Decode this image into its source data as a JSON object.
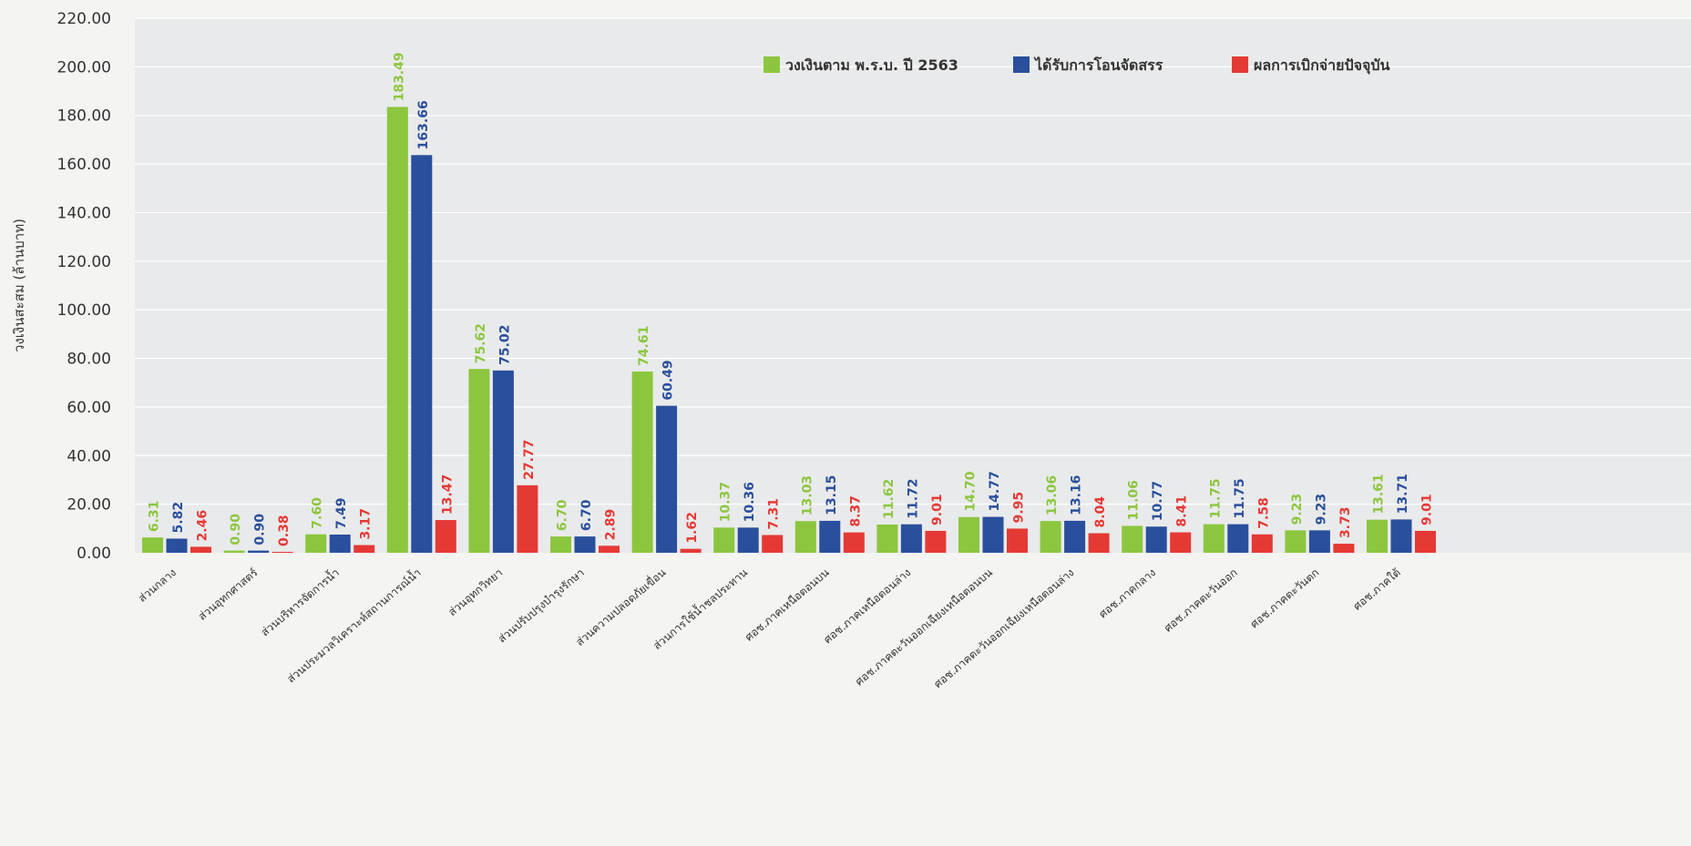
{
  "colors": {
    "series_1": "#8cc63f",
    "series_2": "#2a4f9c",
    "series_3": "#e53935",
    "plot_background": "#e9eaeb",
    "gridline": "#ffffff",
    "text": "#333333"
  },
  "chart_data": {
    "type": "bar",
    "title": "",
    "xlabel": "",
    "ylabel": "วงเงินสะสม (ล้านบาท)",
    "ylim": [
      0,
      220
    ],
    "y_ticks": [
      "0.00",
      "20.00",
      "40.00",
      "60.00",
      "80.00",
      "100.00",
      "120.00",
      "140.00",
      "160.00",
      "180.00",
      "200.00",
      "220.00"
    ],
    "grid": true,
    "legend_position": "top-right",
    "categories": [
      "ส่วนกลาง",
      "ส่วนอุทกศาสตร์",
      "ส่วนบริหารจัดการน้ำ",
      "ส่วนประมวลวิเคราะห์สถานการณ์น้ำ",
      "ส่วนอุทกวิทยา",
      "ส่วนปรับปรุงบำรุงรักษา",
      "ส่วนความปลอดภัยเขื่อน",
      "ส่วนการใช้น้ำชลประทาน",
      "ศอช.ภาคเหนือตอนบน",
      "ศอช.ภาคเหนือตอนล่าง",
      "ศอช.ภาคตะวันออกเฉียงเหนือตอนบน",
      "ศอช.ภาคตะวันออกเฉียงเหนือตอนล่าง",
      "ศอช.ภาคกลาง",
      "ศอช.ภาคตะวันออก",
      "ศอช.ภาคตะวันตก",
      "ศอช.ภาคใต้"
    ],
    "series": [
      {
        "name": "วงเงินตาม พ.ร.บ. ปี 2563",
        "values": [
          6.31,
          0.9,
          7.6,
          183.49,
          75.62,
          6.7,
          74.61,
          10.37,
          13.03,
          11.62,
          14.7,
          13.06,
          11.06,
          11.75,
          9.23,
          13.61
        ],
        "labels": [
          "6.31",
          "0.90",
          "7.60",
          "183.49",
          "75.62",
          "6.70",
          "74.61",
          "10.37",
          "13.03",
          "11.62",
          "14.70",
          "13.06",
          "11.06",
          "11.75",
          "9.23",
          "13.61"
        ]
      },
      {
        "name": "ได้รับการโอนจัดสรร",
        "values": [
          5.82,
          0.9,
          7.49,
          163.66,
          75.02,
          6.7,
          60.49,
          10.36,
          13.15,
          11.72,
          14.77,
          13.16,
          10.77,
          11.75,
          9.23,
          13.71
        ],
        "labels": [
          "5.82",
          "0.90",
          "7.49",
          "163.66",
          "75.02",
          "6.70",
          "60.49",
          "10.36",
          "13.15",
          "11.72",
          "14.77",
          "13.16",
          "10.77",
          "11.75",
          "9.23",
          "13.71"
        ]
      },
      {
        "name": "ผลการเบิกจ่ายปัจจุบัน",
        "values": [
          2.46,
          0.38,
          3.17,
          13.47,
          27.77,
          2.89,
          1.62,
          7.31,
          8.37,
          9.01,
          9.95,
          8.04,
          8.41,
          7.58,
          3.73,
          9.01
        ],
        "labels": [
          "2.46",
          "0.38",
          "3.17",
          "13.47",
          "27.77",
          "2.89",
          "1.62",
          "7.31",
          "8.37",
          "9.01",
          "9.95",
          "8.04",
          "8.41",
          "7.58",
          "3.73",
          "9.01"
        ]
      }
    ]
  }
}
